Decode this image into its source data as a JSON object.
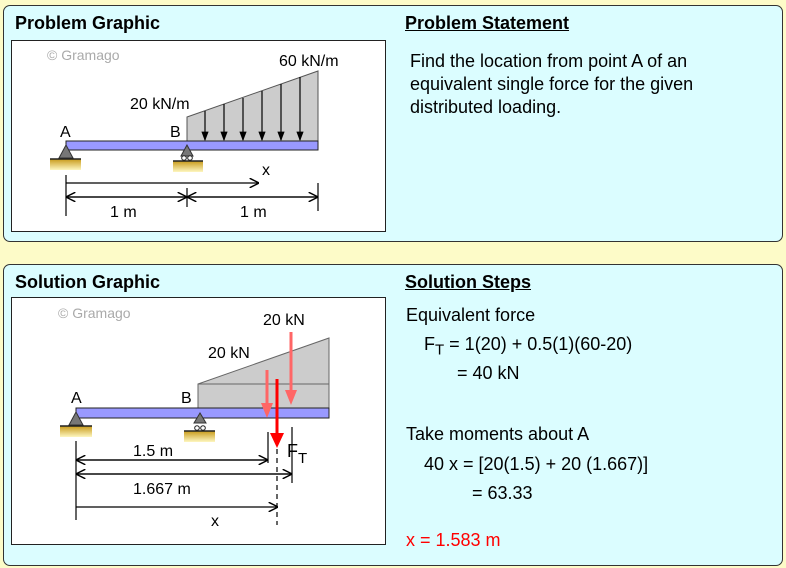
{
  "problem": {
    "graphic_title": "Problem Graphic",
    "statement_title": "Problem Statement",
    "statement": "Find the location from point A of an equivalent single force for the given distributed loading.",
    "watermark": "© Gramago",
    "load_left": "20 kN/m",
    "load_right": "60 kN/m",
    "point_a": "A",
    "point_b": "B",
    "x_label": "x",
    "dim1": "1 m",
    "dim2": "1 m"
  },
  "solution": {
    "graphic_title": "Solution Graphic",
    "steps_title": "Solution Steps",
    "watermark": "© Gramago",
    "force1": "20 kN",
    "force2": "20 kN",
    "point_a": "A",
    "point_b": "B",
    "ft": "F",
    "ft_sub": "T",
    "dim_15": "1.5 m",
    "dim_1667": "1.667 m",
    "x_label": "x",
    "step1": "Equivalent force",
    "step2_f": "F",
    "step2_sub": "T",
    "step2_rest": " = 1(20) + 0.5(1)(60-20)",
    "step3": "= 40 kN",
    "step4": "Take moments about A",
    "step5": "40 x = [20(1.5) + 20 (1.667)]",
    "step6": "= 63.33",
    "answer": "x = 1.583 m"
  },
  "colors": {
    "beam": "#9999ff",
    "load": "#cccccc",
    "force_light": "#ff6666",
    "force": "#ff0000",
    "answer": "#ff0000",
    "panel": "#dbfdff",
    "page": "#fdfbc8"
  }
}
